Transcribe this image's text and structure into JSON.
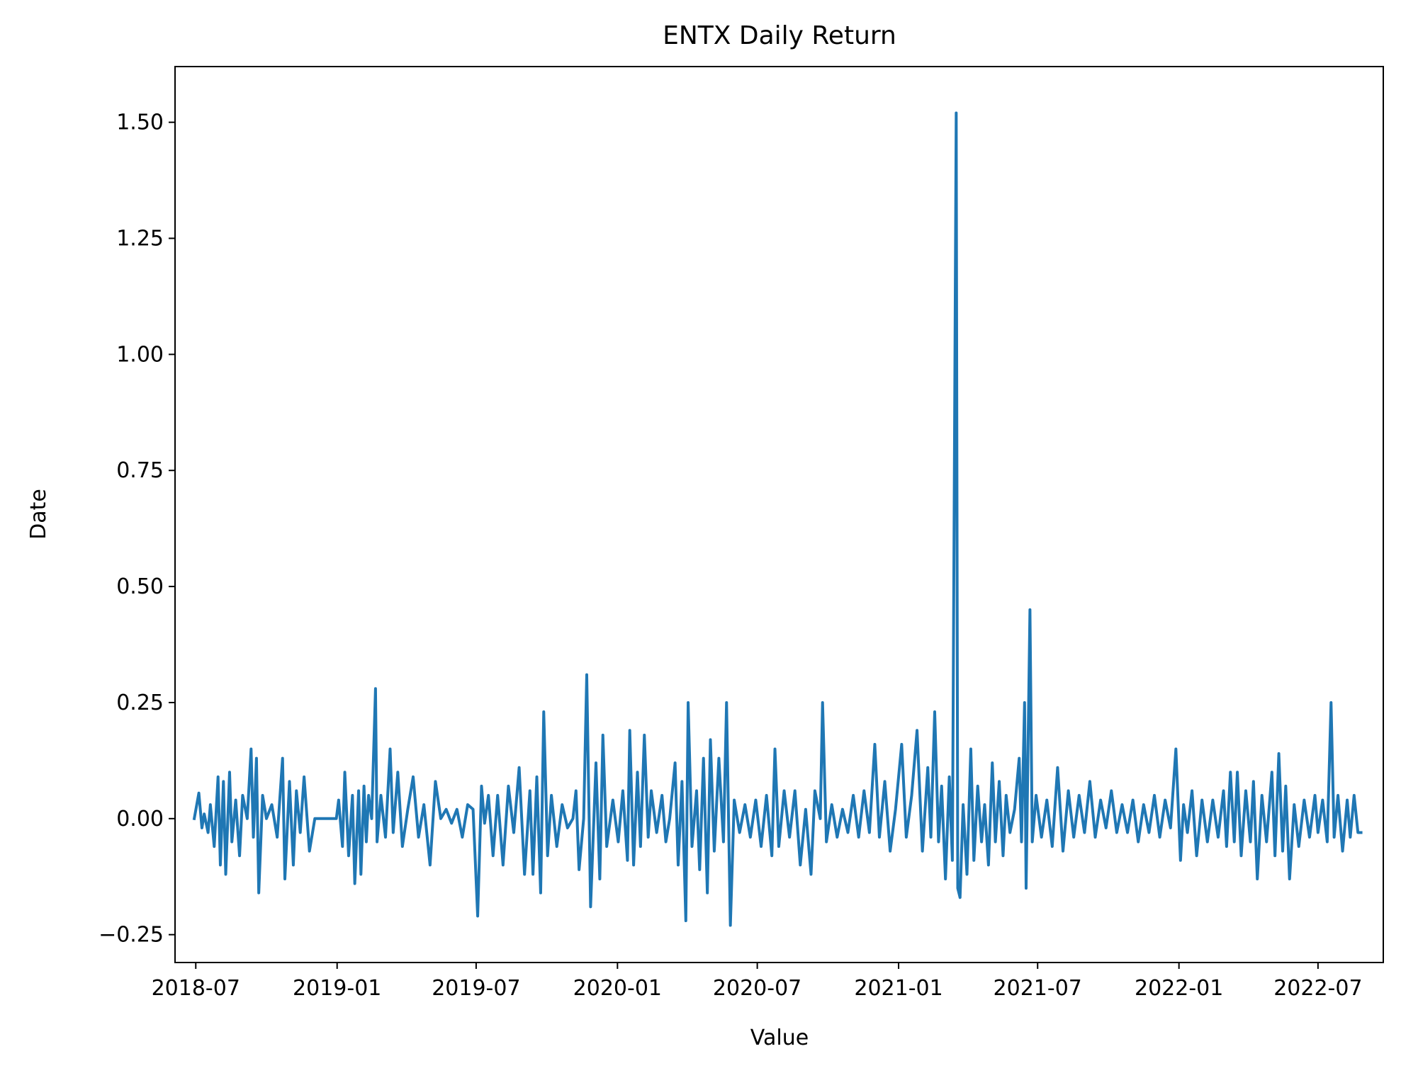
{
  "chart_data": {
    "type": "line",
    "title": "ENTX Daily Return",
    "xlabel": "Value",
    "ylabel": "Date",
    "grid": false,
    "legend": "none",
    "ylim": [
      -0.31,
      1.62
    ],
    "xlim": [
      "2018-06-04",
      "2022-09-24"
    ],
    "x_ticks": [
      "2018-07",
      "2019-01",
      "2019-07",
      "2020-01",
      "2020-07",
      "2021-01",
      "2021-07",
      "2022-01",
      "2022-07"
    ],
    "y_ticks": [
      "−0.25",
      "0.00",
      "0.25",
      "0.50",
      "0.75",
      "1.00",
      "1.25",
      "1.50"
    ],
    "y_tick_values": [
      -0.25,
      0.0,
      0.25,
      0.5,
      0.75,
      1.0,
      1.25,
      1.5
    ],
    "series": [
      {
        "color": "#1f77b4",
        "points": [
          [
            "2018-06-29",
            0.0
          ],
          [
            "2018-07-05",
            0.055
          ],
          [
            "2018-07-09",
            -0.02
          ],
          [
            "2018-07-12",
            0.01
          ],
          [
            "2018-07-17",
            -0.03
          ],
          [
            "2018-07-20",
            0.03
          ],
          [
            "2018-07-25",
            -0.06
          ],
          [
            "2018-07-30",
            0.09
          ],
          [
            "2018-08-02",
            -0.1
          ],
          [
            "2018-08-06",
            0.08
          ],
          [
            "2018-08-09",
            -0.12
          ],
          [
            "2018-08-14",
            0.1
          ],
          [
            "2018-08-17",
            -0.05
          ],
          [
            "2018-08-22",
            0.04
          ],
          [
            "2018-08-27",
            -0.08
          ],
          [
            "2018-08-31",
            0.05
          ],
          [
            "2018-09-06",
            0.0
          ],
          [
            "2018-09-11",
            0.15
          ],
          [
            "2018-09-14",
            -0.04
          ],
          [
            "2018-09-18",
            0.13
          ],
          [
            "2018-09-21",
            -0.16
          ],
          [
            "2018-09-26",
            0.05
          ],
          [
            "2018-10-01",
            0.0
          ],
          [
            "2018-10-08",
            0.03
          ],
          [
            "2018-10-15",
            -0.04
          ],
          [
            "2018-10-22",
            0.13
          ],
          [
            "2018-10-25",
            -0.13
          ],
          [
            "2018-10-31",
            0.08
          ],
          [
            "2018-11-05",
            -0.1
          ],
          [
            "2018-11-09",
            0.06
          ],
          [
            "2018-11-14",
            -0.03
          ],
          [
            "2018-11-19",
            0.09
          ],
          [
            "2018-11-26",
            -0.07
          ],
          [
            "2018-12-03",
            0.0
          ],
          [
            "2018-12-14",
            0.0
          ],
          [
            "2018-12-31",
            0.0
          ],
          [
            "2019-01-03",
            0.04
          ],
          [
            "2019-01-08",
            -0.06
          ],
          [
            "2019-01-11",
            0.1
          ],
          [
            "2019-01-16",
            -0.08
          ],
          [
            "2019-01-21",
            0.05
          ],
          [
            "2019-01-24",
            -0.14
          ],
          [
            "2019-01-29",
            0.06
          ],
          [
            "2019-02-01",
            -0.12
          ],
          [
            "2019-02-05",
            0.07
          ],
          [
            "2019-02-08",
            -0.05
          ],
          [
            "2019-02-11",
            0.05
          ],
          [
            "2019-02-15",
            0.0
          ],
          [
            "2019-02-20",
            0.28
          ],
          [
            "2019-02-22",
            -0.05
          ],
          [
            "2019-02-27",
            0.05
          ],
          [
            "2019-03-05",
            -0.04
          ],
          [
            "2019-03-11",
            0.15
          ],
          [
            "2019-03-15",
            -0.03
          ],
          [
            "2019-03-21",
            0.1
          ],
          [
            "2019-03-27",
            -0.06
          ],
          [
            "2019-04-03",
            0.02
          ],
          [
            "2019-04-10",
            0.09
          ],
          [
            "2019-04-17",
            -0.04
          ],
          [
            "2019-04-24",
            0.03
          ],
          [
            "2019-05-02",
            -0.1
          ],
          [
            "2019-05-09",
            0.08
          ],
          [
            "2019-05-16",
            0.0
          ],
          [
            "2019-05-23",
            0.02
          ],
          [
            "2019-05-30",
            -0.01
          ],
          [
            "2019-06-06",
            0.02
          ],
          [
            "2019-06-13",
            -0.04
          ],
          [
            "2019-06-20",
            0.03
          ],
          [
            "2019-06-27",
            0.02
          ],
          [
            "2019-07-03",
            -0.21
          ],
          [
            "2019-07-08",
            0.07
          ],
          [
            "2019-07-12",
            -0.01
          ],
          [
            "2019-07-17",
            0.05
          ],
          [
            "2019-07-23",
            -0.08
          ],
          [
            "2019-07-29",
            0.05
          ],
          [
            "2019-08-05",
            -0.1
          ],
          [
            "2019-08-12",
            0.07
          ],
          [
            "2019-08-19",
            -0.03
          ],
          [
            "2019-08-26",
            0.11
          ],
          [
            "2019-09-02",
            -0.12
          ],
          [
            "2019-09-09",
            0.06
          ],
          [
            "2019-09-13",
            -0.12
          ],
          [
            "2019-09-18",
            0.09
          ],
          [
            "2019-09-23",
            -0.16
          ],
          [
            "2019-09-27",
            0.23
          ],
          [
            "2019-10-02",
            -0.08
          ],
          [
            "2019-10-07",
            0.05
          ],
          [
            "2019-10-14",
            -0.06
          ],
          [
            "2019-10-21",
            0.03
          ],
          [
            "2019-10-28",
            -0.02
          ],
          [
            "2019-11-04",
            0.0
          ],
          [
            "2019-11-08",
            0.06
          ],
          [
            "2019-11-12",
            -0.11
          ],
          [
            "2019-11-18",
            0.0
          ],
          [
            "2019-11-22",
            0.31
          ],
          [
            "2019-11-27",
            -0.19
          ],
          [
            "2019-12-04",
            0.12
          ],
          [
            "2019-12-09",
            -0.13
          ],
          [
            "2019-12-13",
            0.18
          ],
          [
            "2019-12-18",
            -0.06
          ],
          [
            "2019-12-26",
            0.04
          ],
          [
            "2020-01-02",
            -0.05
          ],
          [
            "2020-01-08",
            0.06
          ],
          [
            "2020-01-14",
            -0.09
          ],
          [
            "2020-01-17",
            0.19
          ],
          [
            "2020-01-22",
            -0.1
          ],
          [
            "2020-01-27",
            0.1
          ],
          [
            "2020-01-31",
            -0.06
          ],
          [
            "2020-02-05",
            0.18
          ],
          [
            "2020-02-10",
            -0.04
          ],
          [
            "2020-02-14",
            0.06
          ],
          [
            "2020-02-21",
            -0.03
          ],
          [
            "2020-02-28",
            0.05
          ],
          [
            "2020-03-04",
            -0.05
          ],
          [
            "2020-03-09",
            0.0
          ],
          [
            "2020-03-16",
            0.12
          ],
          [
            "2020-03-20",
            -0.1
          ],
          [
            "2020-03-25",
            0.08
          ],
          [
            "2020-03-30",
            -0.22
          ],
          [
            "2020-04-02",
            0.25
          ],
          [
            "2020-04-07",
            -0.06
          ],
          [
            "2020-04-13",
            0.06
          ],
          [
            "2020-04-17",
            -0.11
          ],
          [
            "2020-04-22",
            0.13
          ],
          [
            "2020-04-27",
            -0.16
          ],
          [
            "2020-05-01",
            0.17
          ],
          [
            "2020-05-06",
            -0.07
          ],
          [
            "2020-05-12",
            0.13
          ],
          [
            "2020-05-18",
            -0.05
          ],
          [
            "2020-05-22",
            0.25
          ],
          [
            "2020-05-27",
            -0.23
          ],
          [
            "2020-06-01",
            0.04
          ],
          [
            "2020-06-08",
            -0.03
          ],
          [
            "2020-06-15",
            0.03
          ],
          [
            "2020-06-22",
            -0.04
          ],
          [
            "2020-06-29",
            0.04
          ],
          [
            "2020-07-06",
            -0.06
          ],
          [
            "2020-07-13",
            0.05
          ],
          [
            "2020-07-20",
            -0.08
          ],
          [
            "2020-07-24",
            0.15
          ],
          [
            "2020-07-29",
            -0.06
          ],
          [
            "2020-08-05",
            0.06
          ],
          [
            "2020-08-12",
            -0.04
          ],
          [
            "2020-08-19",
            0.06
          ],
          [
            "2020-08-26",
            -0.1
          ],
          [
            "2020-09-02",
            0.02
          ],
          [
            "2020-09-09",
            -0.12
          ],
          [
            "2020-09-14",
            0.06
          ],
          [
            "2020-09-21",
            0.0
          ],
          [
            "2020-09-24",
            0.25
          ],
          [
            "2020-09-29",
            -0.05
          ],
          [
            "2020-10-06",
            0.03
          ],
          [
            "2020-10-13",
            -0.04
          ],
          [
            "2020-10-20",
            0.02
          ],
          [
            "2020-10-27",
            -0.03
          ],
          [
            "2020-11-03",
            0.05
          ],
          [
            "2020-11-10",
            -0.04
          ],
          [
            "2020-11-17",
            0.06
          ],
          [
            "2020-11-24",
            -0.03
          ],
          [
            "2020-12-01",
            0.16
          ],
          [
            "2020-12-07",
            -0.04
          ],
          [
            "2020-12-14",
            0.08
          ],
          [
            "2020-12-21",
            -0.07
          ],
          [
            "2020-12-28",
            0.02
          ],
          [
            "2021-01-05",
            0.16
          ],
          [
            "2021-01-11",
            -0.04
          ],
          [
            "2021-01-18",
            0.05
          ],
          [
            "2021-01-25",
            0.19
          ],
          [
            "2021-02-01",
            -0.07
          ],
          [
            "2021-02-08",
            0.11
          ],
          [
            "2021-02-12",
            -0.04
          ],
          [
            "2021-02-17",
            0.23
          ],
          [
            "2021-02-22",
            -0.05
          ],
          [
            "2021-02-26",
            0.07
          ],
          [
            "2021-03-03",
            -0.13
          ],
          [
            "2021-03-08",
            0.09
          ],
          [
            "2021-03-12",
            -0.09
          ],
          [
            "2021-03-17",
            1.52
          ],
          [
            "2021-03-19",
            -0.15
          ],
          [
            "2021-03-22",
            -0.17
          ],
          [
            "2021-03-26",
            0.03
          ],
          [
            "2021-03-31",
            -0.12
          ],
          [
            "2021-04-05",
            0.15
          ],
          [
            "2021-04-09",
            -0.09
          ],
          [
            "2021-04-14",
            0.07
          ],
          [
            "2021-04-19",
            -0.05
          ],
          [
            "2021-04-23",
            0.03
          ],
          [
            "2021-04-28",
            -0.1
          ],
          [
            "2021-05-03",
            0.12
          ],
          [
            "2021-05-07",
            -0.05
          ],
          [
            "2021-05-12",
            0.08
          ],
          [
            "2021-05-17",
            -0.08
          ],
          [
            "2021-05-21",
            0.05
          ],
          [
            "2021-05-26",
            -0.03
          ],
          [
            "2021-06-01",
            0.02
          ],
          [
            "2021-06-07",
            0.13
          ],
          [
            "2021-06-10",
            -0.05
          ],
          [
            "2021-06-14",
            0.25
          ],
          [
            "2021-06-16",
            -0.15
          ],
          [
            "2021-06-21",
            0.45
          ],
          [
            "2021-06-24",
            -0.05
          ],
          [
            "2021-06-29",
            0.05
          ],
          [
            "2021-07-06",
            -0.04
          ],
          [
            "2021-07-13",
            0.04
          ],
          [
            "2021-07-20",
            -0.06
          ],
          [
            "2021-07-27",
            0.11
          ],
          [
            "2021-08-03",
            -0.07
          ],
          [
            "2021-08-10",
            0.06
          ],
          [
            "2021-08-17",
            -0.04
          ],
          [
            "2021-08-24",
            0.05
          ],
          [
            "2021-08-31",
            -0.03
          ],
          [
            "2021-09-07",
            0.08
          ],
          [
            "2021-09-14",
            -0.04
          ],
          [
            "2021-09-21",
            0.04
          ],
          [
            "2021-09-28",
            -0.02
          ],
          [
            "2021-10-05",
            0.06
          ],
          [
            "2021-10-12",
            -0.03
          ],
          [
            "2021-10-19",
            0.03
          ],
          [
            "2021-10-26",
            -0.03
          ],
          [
            "2021-11-02",
            0.04
          ],
          [
            "2021-11-09",
            -0.05
          ],
          [
            "2021-11-16",
            0.03
          ],
          [
            "2021-11-23",
            -0.03
          ],
          [
            "2021-11-30",
            0.05
          ],
          [
            "2021-12-07",
            -0.04
          ],
          [
            "2021-12-14",
            0.04
          ],
          [
            "2021-12-21",
            -0.02
          ],
          [
            "2021-12-28",
            0.15
          ],
          [
            "2022-01-03",
            -0.09
          ],
          [
            "2022-01-07",
            0.03
          ],
          [
            "2022-01-12",
            -0.03
          ],
          [
            "2022-01-18",
            0.06
          ],
          [
            "2022-01-24",
            -0.08
          ],
          [
            "2022-01-31",
            0.04
          ],
          [
            "2022-02-07",
            -0.05
          ],
          [
            "2022-02-14",
            0.04
          ],
          [
            "2022-02-21",
            -0.04
          ],
          [
            "2022-02-28",
            0.06
          ],
          [
            "2022-03-04",
            -0.06
          ],
          [
            "2022-03-09",
            0.1
          ],
          [
            "2022-03-14",
            -0.05
          ],
          [
            "2022-03-18",
            0.1
          ],
          [
            "2022-03-23",
            -0.08
          ],
          [
            "2022-03-29",
            0.06
          ],
          [
            "2022-04-04",
            -0.05
          ],
          [
            "2022-04-08",
            0.08
          ],
          [
            "2022-04-13",
            -0.13
          ],
          [
            "2022-04-19",
            0.05
          ],
          [
            "2022-04-25",
            -0.05
          ],
          [
            "2022-05-02",
            0.1
          ],
          [
            "2022-05-06",
            -0.08
          ],
          [
            "2022-05-11",
            0.14
          ],
          [
            "2022-05-16",
            -0.07
          ],
          [
            "2022-05-20",
            0.07
          ],
          [
            "2022-05-25",
            -0.13
          ],
          [
            "2022-05-31",
            0.03
          ],
          [
            "2022-06-06",
            -0.06
          ],
          [
            "2022-06-13",
            0.04
          ],
          [
            "2022-06-20",
            -0.04
          ],
          [
            "2022-06-27",
            0.05
          ],
          [
            "2022-07-01",
            -0.03
          ],
          [
            "2022-07-07",
            0.04
          ],
          [
            "2022-07-13",
            -0.05
          ],
          [
            "2022-07-18",
            0.25
          ],
          [
            "2022-07-22",
            -0.04
          ],
          [
            "2022-07-27",
            0.05
          ],
          [
            "2022-08-02",
            -0.07
          ],
          [
            "2022-08-08",
            0.04
          ],
          [
            "2022-08-12",
            -0.04
          ],
          [
            "2022-08-17",
            0.05
          ],
          [
            "2022-08-22",
            -0.03
          ],
          [
            "2022-08-26",
            -0.03
          ]
        ]
      }
    ]
  }
}
